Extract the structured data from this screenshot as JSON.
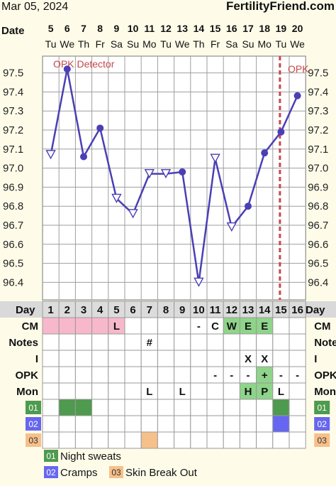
{
  "header": {
    "date": "Mar 05, 2024",
    "brand": "FertilityFriend.com",
    "date_label": "Date"
  },
  "chart_data": {
    "type": "line",
    "dates": [
      "5",
      "6",
      "7",
      "8",
      "9",
      "10",
      "11",
      "12",
      "13",
      "14",
      "15",
      "16",
      "17",
      "18",
      "19",
      "20"
    ],
    "weekdays": [
      "Tu",
      "We",
      "Th",
      "Fr",
      "Sa",
      "Su",
      "Mo",
      "Tu",
      "We",
      "Th",
      "Fr",
      "Sa",
      "Su",
      "Mo",
      "Tu",
      "We"
    ],
    "cycle_days": [
      1,
      2,
      3,
      4,
      5,
      6,
      7,
      8,
      9,
      10,
      11,
      12,
      13,
      14,
      15,
      16
    ],
    "temperatures": [
      97.07,
      97.52,
      97.06,
      97.21,
      96.84,
      96.76,
      96.97,
      96.97,
      96.98,
      96.4,
      97.05,
      96.69,
      96.8,
      97.08,
      97.19,
      97.38
    ],
    "point_markers": [
      "open-triangle",
      "filled-circle",
      "filled-circle",
      "filled-circle",
      "open-triangle",
      "open-triangle",
      "open-triangle",
      "open-triangle",
      "filled-circle",
      "open-triangle",
      "open-triangle",
      "open-triangle",
      "filled-circle",
      "filled-circle",
      "filled-circle",
      "filled-circle"
    ],
    "connected": [
      false,
      true,
      true,
      true,
      true,
      true,
      true,
      true,
      true,
      true,
      true,
      true,
      true,
      true,
      true,
      true
    ],
    "y_ticks": [
      "97.5",
      "97.4",
      "97.3",
      "97.2",
      "97.1",
      "97.0",
      "96.9",
      "96.8",
      "96.7",
      "96.6",
      "96.5",
      "96.4"
    ],
    "ylim": [
      96.35,
      97.55
    ],
    "grid": true,
    "line_color": "#4A3FB5",
    "opk_marker_day": 15,
    "opk_marker_color": "#C9484A",
    "annotations": [
      "OPK Detector",
      "OPK"
    ]
  },
  "table": {
    "day_label": "Day",
    "rows": [
      {
        "label": "CM",
        "cells": [
          "",
          "",
          "",
          "",
          "L",
          "",
          "",
          "",
          "",
          "-",
          "C",
          "W",
          "E",
          "E",
          "",
          ""
        ],
        "colors": [
          "pink",
          "pink",
          "pink",
          "pink",
          "pink",
          "",
          "",
          "",
          "",
          "",
          "",
          "green",
          "green",
          "green",
          "",
          ""
        ]
      },
      {
        "label": "Notes",
        "cells": [
          "",
          "",
          "",
          "",
          "",
          "",
          "#",
          "",
          "",
          "",
          "",
          "",
          "",
          "",
          "",
          ""
        ],
        "colors": [
          "",
          "",
          "",
          "",
          "",
          "",
          "",
          "",
          "",
          "",
          "",
          "",
          "",
          "",
          "",
          ""
        ]
      },
      {
        "label": "I",
        "cells": [
          "",
          "",
          "",
          "",
          "",
          "",
          "",
          "",
          "",
          "",
          "",
          "",
          "X",
          "X",
          "",
          ""
        ],
        "colors": [
          "",
          "",
          "",
          "",
          "",
          "",
          "",
          "",
          "",
          "",
          "",
          "",
          "",
          "",
          "",
          ""
        ]
      },
      {
        "label": "OPK",
        "cells": [
          "",
          "",
          "",
          "",
          "",
          "",
          "",
          "",
          "",
          "",
          "-",
          "-",
          "-",
          "+",
          "-",
          "-"
        ],
        "colors": [
          "",
          "",
          "",
          "",
          "",
          "",
          "",
          "",
          "",
          "",
          "",
          "",
          "",
          "green",
          "",
          ""
        ]
      },
      {
        "label": "Mon",
        "cells": [
          "",
          "",
          "",
          "",
          "",
          "",
          "L",
          "",
          "L",
          "",
          "",
          "",
          "H",
          "P",
          "L",
          ""
        ],
        "colors": [
          "",
          "",
          "",
          "",
          "",
          "",
          "",
          "",
          "",
          "",
          "",
          "",
          "green",
          "green",
          "",
          ""
        ]
      },
      {
        "label": "01",
        "cells": [
          "",
          "",
          "",
          "",
          "",
          "",
          "",
          "",
          "",
          "",
          "",
          "",
          "",
          "",
          "",
          ""
        ],
        "colors": [
          "",
          "darkgreen",
          "darkgreen",
          "",
          "",
          "",
          "",
          "",
          "",
          "",
          "",
          "",
          "",
          "",
          "darkgreen",
          ""
        ],
        "tag_color": "darkgreen"
      },
      {
        "label": "02",
        "cells": [
          "",
          "",
          "",
          "",
          "",
          "",
          "",
          "",
          "",
          "",
          "",
          "",
          "",
          "",
          "",
          ""
        ],
        "colors": [
          "",
          "",
          "",
          "",
          "",
          "",
          "",
          "",
          "",
          "",
          "",
          "",
          "",
          "",
          "blue",
          ""
        ],
        "tag_color": "blue"
      },
      {
        "label": "03",
        "cells": [
          "",
          "",
          "",
          "",
          "",
          "",
          "",
          "",
          "",
          "",
          "",
          "",
          "",
          "",
          "",
          ""
        ],
        "colors": [
          "",
          "",
          "",
          "",
          "",
          "",
          "peach",
          "",
          "",
          "",
          "",
          "",
          "",
          "",
          "",
          ""
        ],
        "tag_color": "peach"
      }
    ]
  },
  "legend": [
    {
      "code": "01",
      "label": "Night sweats",
      "color": "darkgreen"
    },
    {
      "code": "02",
      "label": "Cramps",
      "color": "blue"
    },
    {
      "code": "03",
      "label": "Skin Break Out",
      "color": "peach"
    }
  ],
  "colors": {
    "pink": "#F7B8CC",
    "green": "#8ED48A",
    "darkgreen": "#4E9A4E",
    "blue": "#6666F0",
    "peach": "#F6C08A",
    "grid": "#9E9E9E",
    "cell": "#FFFFFF"
  }
}
